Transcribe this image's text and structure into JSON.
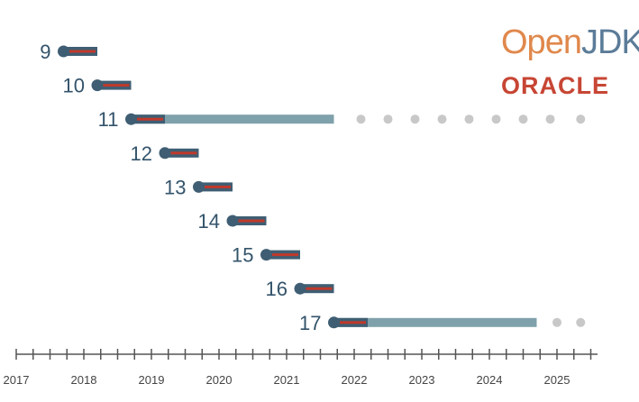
{
  "logos": {
    "open": "Open",
    "jdk": "JDK",
    "oracle": "ORACLE"
  },
  "colors": {
    "marker": "#3f5e73",
    "short_support": "#c0392b",
    "extended_support": "#7fa1ab",
    "future_dots": "#c8c8c8",
    "version_label": "#33536a",
    "axis": "#555555"
  },
  "chart_data": {
    "type": "timeline",
    "title": "",
    "xlabel": "",
    "ylabel": "",
    "xlim": [
      2017.0,
      2025.6
    ],
    "ticks_per_year": 4,
    "year_labels": [
      "2017",
      "2018",
      "2019",
      "2020",
      "2021",
      "2022",
      "2023",
      "2024",
      "2025"
    ],
    "releases": [
      {
        "version": "9",
        "start": 2017.7,
        "end": 2018.2,
        "lts": false
      },
      {
        "version": "10",
        "start": 2018.2,
        "end": 2018.7,
        "lts": false
      },
      {
        "version": "11",
        "start": 2018.7,
        "end": 2019.2,
        "lts": true,
        "extended_end": 2021.7,
        "future_dots": [
          2022.1,
          2022.5,
          2022.9,
          2023.3,
          2023.7,
          2024.1,
          2024.5,
          2024.9,
          2025.35
        ]
      },
      {
        "version": "12",
        "start": 2019.2,
        "end": 2019.7,
        "lts": false
      },
      {
        "version": "13",
        "start": 2019.7,
        "end": 2020.2,
        "lts": false
      },
      {
        "version": "14",
        "start": 2020.2,
        "end": 2020.7,
        "lts": false
      },
      {
        "version": "15",
        "start": 2020.7,
        "end": 2021.2,
        "lts": false
      },
      {
        "version": "16",
        "start": 2021.2,
        "end": 2021.7,
        "lts": false
      },
      {
        "version": "17",
        "start": 2021.7,
        "end": 2022.2,
        "lts": true,
        "extended_end": 2024.7,
        "future_dots": [
          2025.0,
          2025.35
        ]
      }
    ]
  }
}
